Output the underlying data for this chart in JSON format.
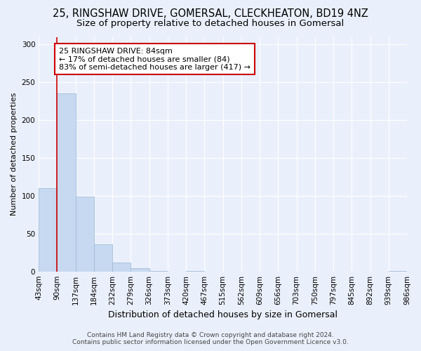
{
  "title": "25, RINGSHAW DRIVE, GOMERSAL, CLECKHEATON, BD19 4NZ",
  "subtitle": "Size of property relative to detached houses in Gomersal",
  "xlabel": "Distribution of detached houses by size in Gomersal",
  "ylabel": "Number of detached properties",
  "bar_values": [
    110,
    235,
    99,
    36,
    12,
    4,
    1,
    0,
    1,
    0,
    0,
    0,
    0,
    0,
    0,
    0,
    0,
    0,
    0,
    1
  ],
  "categories": [
    "43sqm",
    "90sqm",
    "137sqm",
    "184sqm",
    "232sqm",
    "279sqm",
    "326sqm",
    "373sqm",
    "420sqm",
    "467sqm",
    "515sqm",
    "562sqm",
    "609sqm",
    "656sqm",
    "703sqm",
    "750sqm",
    "797sqm",
    "845sqm",
    "892sqm",
    "939sqm",
    "986sqm"
  ],
  "bar_color": "#c6d9f0",
  "bar_edge_color": "#9ab5d5",
  "annotation_text": "25 RINGSHAW DRIVE: 84sqm\n← 17% of detached houses are smaller (84)\n83% of semi-detached houses are larger (417) →",
  "annotation_box_color": "white",
  "annotation_box_edge_color": "#cc0000",
  "red_line_color": "#cc0000",
  "ylim": [
    0,
    310
  ],
  "yticks": [
    0,
    50,
    100,
    150,
    200,
    250,
    300
  ],
  "footer_line1": "Contains HM Land Registry data © Crown copyright and database right 2024.",
  "footer_line2": "Contains public sector information licensed under the Open Government Licence v3.0.",
  "background_color": "#eaf0fb",
  "plot_bg_color": "#eaf0fb",
  "title_fontsize": 10.5,
  "subtitle_fontsize": 9.5,
  "xlabel_fontsize": 9,
  "ylabel_fontsize": 8,
  "tick_fontsize": 7.5,
  "annotation_fontsize": 8,
  "footer_fontsize": 6.5
}
